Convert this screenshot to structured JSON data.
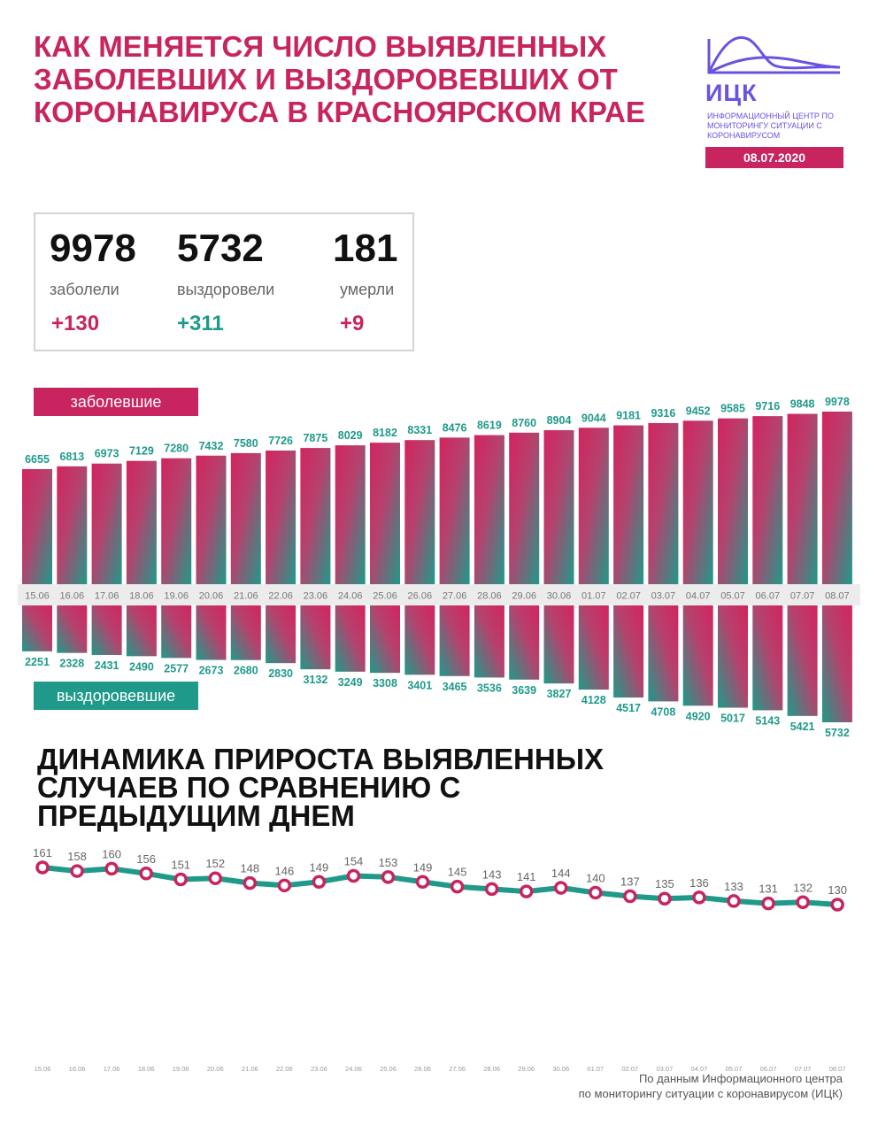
{
  "title": "Как меняется число выявленных заболевших и выздоровевших от коронавируса в Красноярском крае",
  "logo": {
    "name": "ИЦК",
    "subtitle": "Информационный центр по мониторингу ситуации с коронавирусом"
  },
  "date": "08.07.2020",
  "stats": {
    "infected": {
      "value": "9978",
      "label": "заболели",
      "delta": "+130"
    },
    "recovered": {
      "value": "5732",
      "label": "выздоровели",
      "delta": "+311"
    },
    "deaths": {
      "value": "181",
      "label": "умерли",
      "delta": "+9"
    }
  },
  "labels": {
    "infected_pill": "заболевшие",
    "recovered_pill": "выздоровевшие"
  },
  "colors": {
    "accent_red": "#c8245f",
    "accent_teal": "#1f9a8a"
  },
  "subtitle": "Динамика прироста выявленных случаев по сравнению с предыдущим днем",
  "footer": {
    "line1": "По данным Информационного центра",
    "line2": "по мониторингу ситуации с коронавирусом (ИЦК)"
  },
  "chart_data": [
    {
      "type": "bar",
      "categories": [
        "15.06",
        "16.06",
        "17.06",
        "18.06",
        "19.06",
        "20.06",
        "21.06",
        "22.06",
        "23.06",
        "24.06",
        "25.06",
        "26.06",
        "27.06",
        "28.06",
        "29.06",
        "30.06",
        "01.07",
        "02.07",
        "03.07",
        "04.07",
        "05.07",
        "06.07",
        "07.07",
        "08.07"
      ],
      "series": [
        {
          "name": "заболевшие",
          "values": [
            6655,
            6813,
            6973,
            7129,
            7280,
            7432,
            7580,
            7726,
            7875,
            8029,
            8182,
            8331,
            8476,
            8619,
            8760,
            8904,
            9044,
            9181,
            9316,
            9452,
            9585,
            9716,
            9848,
            9978
          ]
        },
        {
          "name": "выздоровевшие",
          "values": [
            2251,
            2328,
            2431,
            2490,
            2577,
            2673,
            2680,
            2830,
            3132,
            3249,
            3308,
            3401,
            3465,
            3536,
            3639,
            3827,
            4128,
            4517,
            4708,
            4920,
            5017,
            5143,
            5421,
            5732
          ]
        }
      ]
    },
    {
      "type": "line",
      "title": "Динамика прироста выявленных случаев по сравнению с предыдущим днем",
      "categories": [
        "15.06",
        "16.06",
        "17.06",
        "18.06",
        "19.06",
        "20.06",
        "21.06",
        "22.06",
        "23.06",
        "24.06",
        "25.06",
        "26.06",
        "27.06",
        "28.06",
        "29.06",
        "30.06",
        "01.07",
        "02.07",
        "03.07",
        "04.07",
        "05.07",
        "06.07",
        "07.07",
        "08.07"
      ],
      "values": [
        161,
        158,
        160,
        156,
        151,
        152,
        148,
        146,
        149,
        154,
        153,
        149,
        145,
        143,
        141,
        144,
        140,
        137,
        135,
        136,
        133,
        131,
        132,
        130
      ]
    }
  ]
}
